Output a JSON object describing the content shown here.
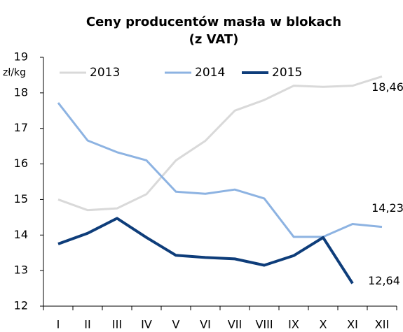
{
  "chart_data": {
    "type": "line",
    "title": [
      "Ceny producentów masła w blokach",
      "(z VAT)"
    ],
    "y_axis_label": "zł/kg",
    "categories": [
      "I",
      "II",
      "III",
      "IV",
      "V",
      "VI",
      "VII",
      "VIII",
      "IX",
      "X",
      "XI",
      "XII"
    ],
    "series": [
      {
        "name": "2013",
        "color": "#d9d9d9",
        "values": [
          15.0,
          14.7,
          14.75,
          15.15,
          16.1,
          16.65,
          17.5,
          17.8,
          18.2,
          18.17,
          18.2,
          18.46
        ],
        "value_labels": [
          null,
          null,
          null,
          null,
          null,
          null,
          null,
          null,
          null,
          null,
          null,
          "18,46"
        ]
      },
      {
        "name": "2014",
        "color": "#8db3e2",
        "values": [
          17.72,
          16.66,
          16.33,
          16.1,
          15.22,
          15.16,
          15.28,
          15.03,
          13.95,
          13.95,
          14.31,
          14.23
        ],
        "value_labels": [
          null,
          null,
          null,
          null,
          null,
          null,
          null,
          null,
          null,
          null,
          null,
          "14,23"
        ]
      },
      {
        "name": "2015",
        "color": "#0e3d7a",
        "values": [
          13.75,
          14.05,
          14.47,
          13.93,
          13.43,
          13.37,
          13.33,
          13.15,
          13.42,
          13.93,
          12.64,
          null
        ],
        "value_labels": [
          null,
          null,
          null,
          null,
          null,
          null,
          null,
          null,
          null,
          null,
          "12,64",
          null
        ]
      }
    ],
    "ylim": [
      12,
      19
    ],
    "yticks": [
      12,
      13,
      14,
      15,
      16,
      17,
      18,
      19
    ],
    "grid": false,
    "legend": "top"
  }
}
